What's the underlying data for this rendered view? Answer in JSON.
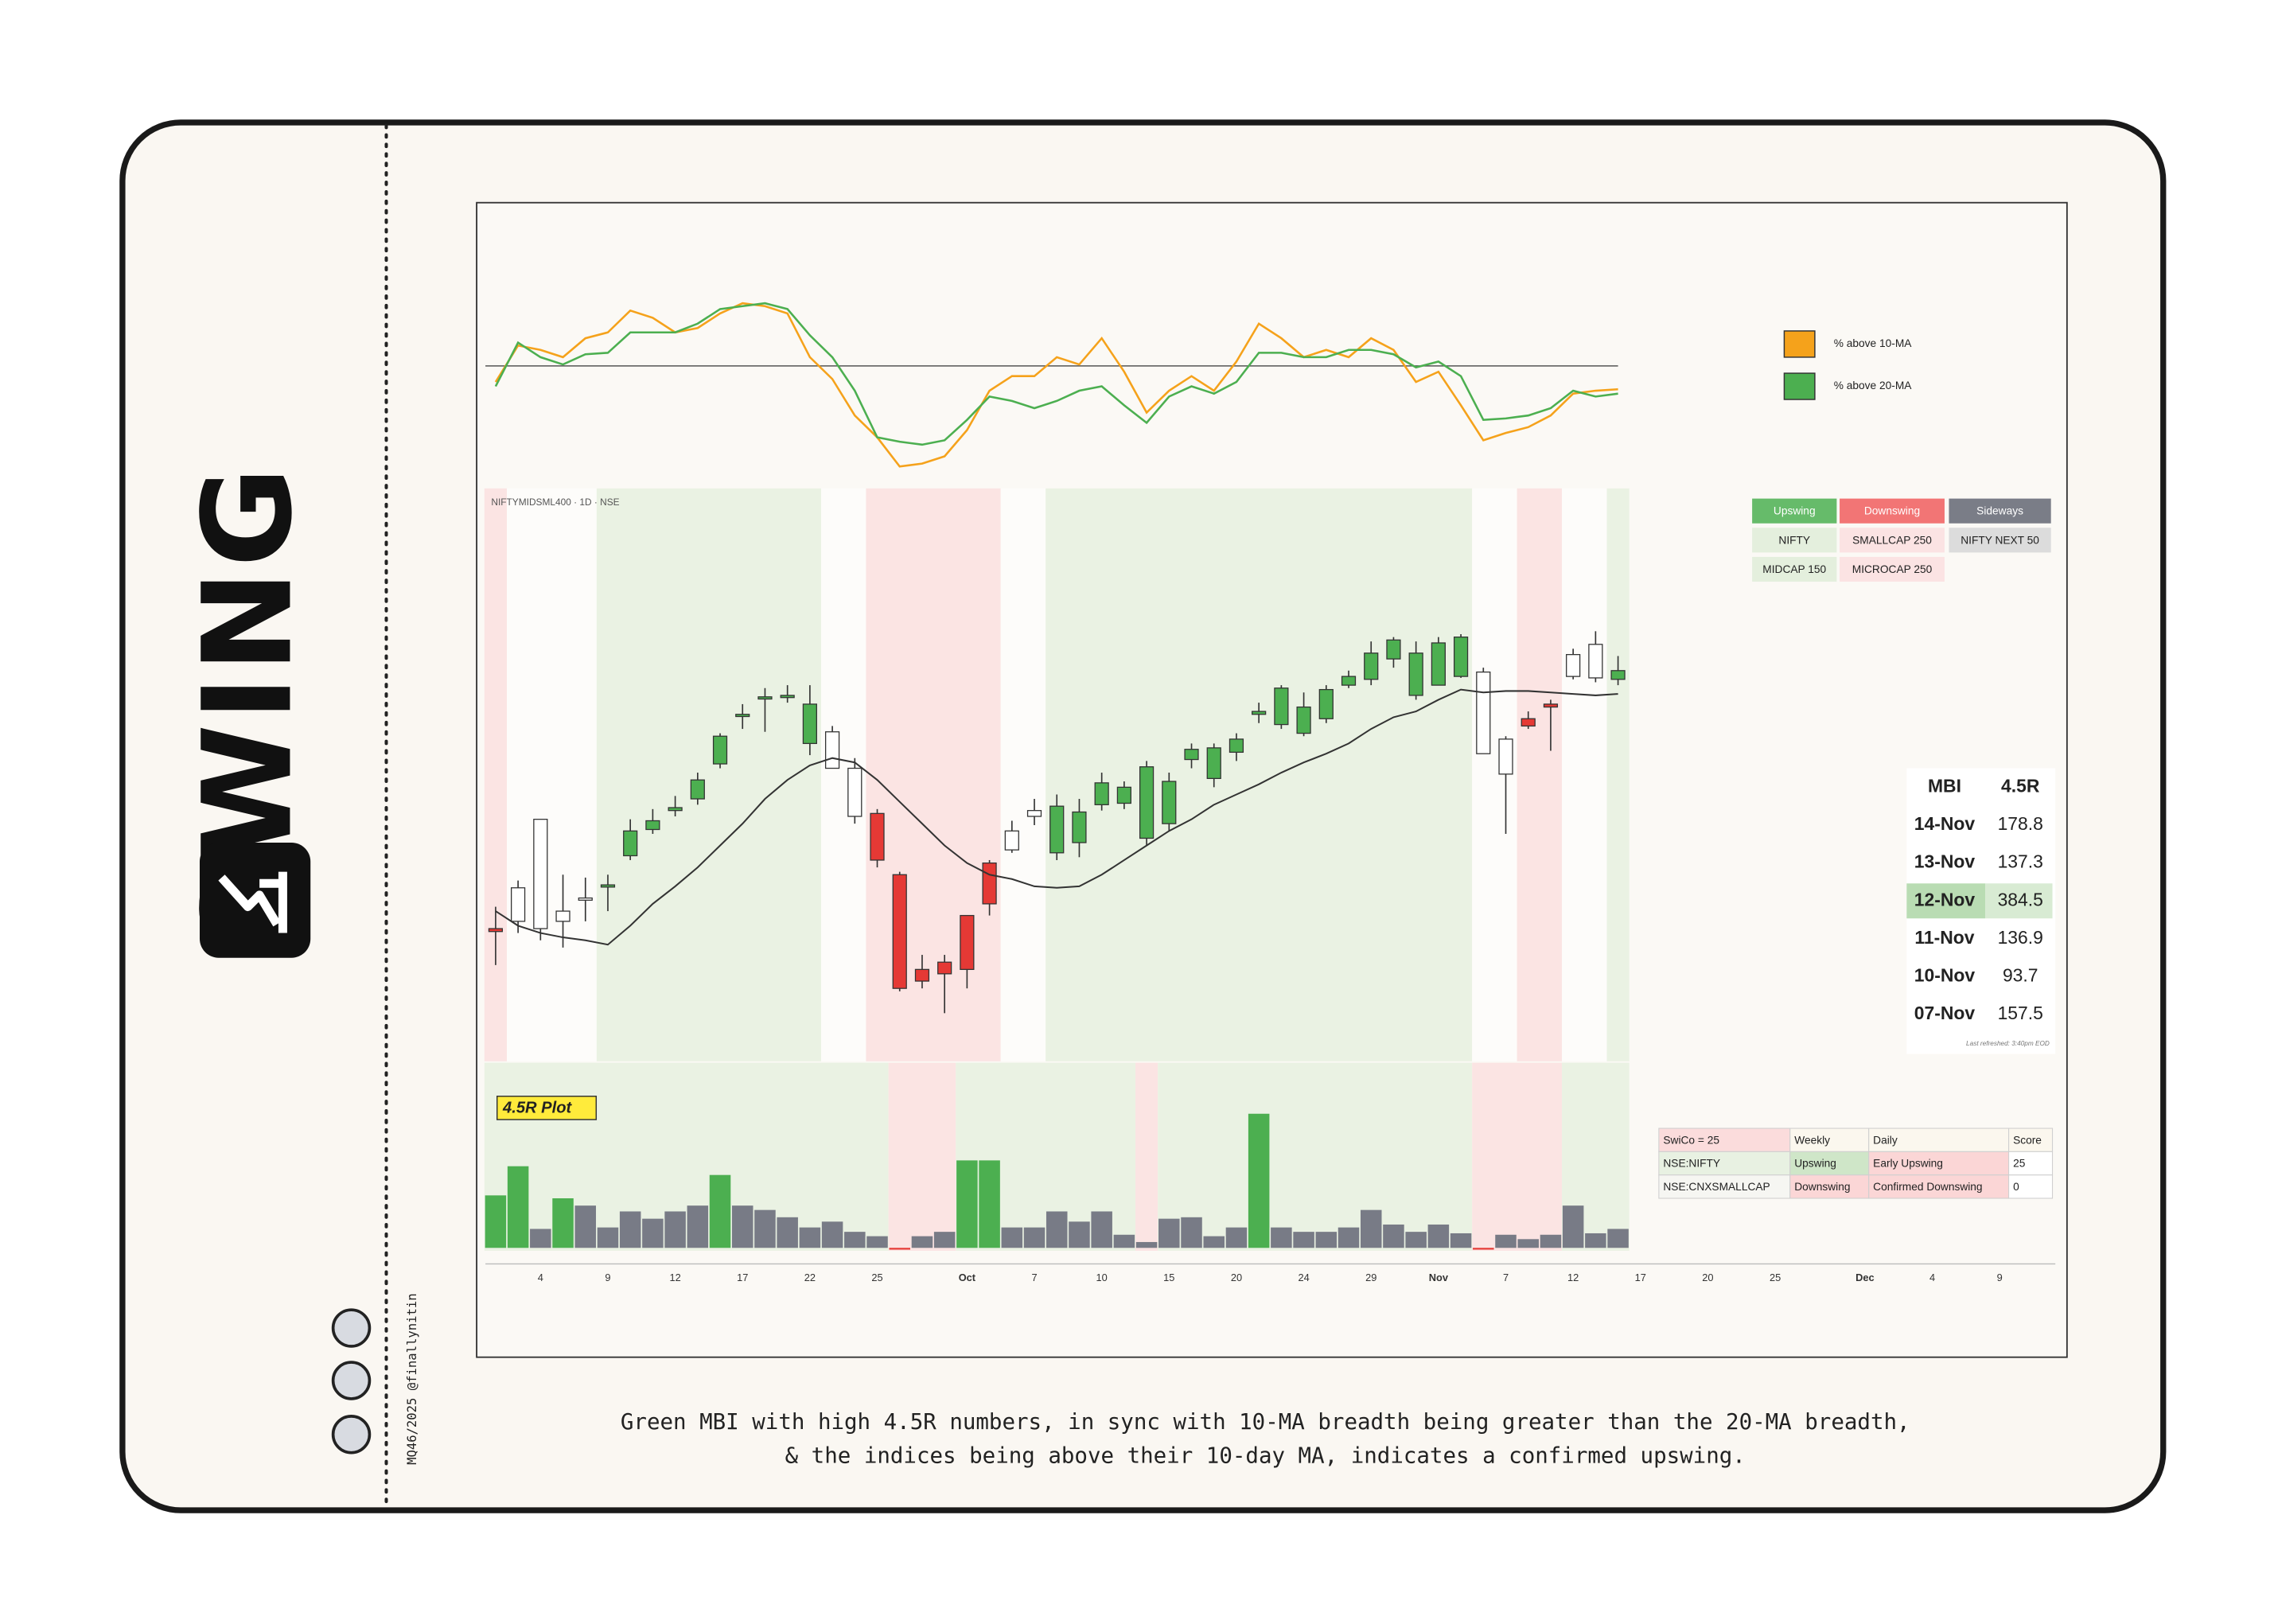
{
  "brand": "SWING",
  "credit": "MQ46/2025 @finallynitin",
  "caption": [
    "Green MBI with high 4.5R numbers, in sync with 10-MA breadth being greater than the 20-MA breadth,",
    "& the indices being above their 10-day MA, indicates a confirmed upswing."
  ],
  "regime_table": {
    "header": [
      "Upswing",
      "Downswing",
      "Sideways"
    ],
    "header_colors": [
      "#66bb6a",
      "#f27575",
      "#7a7d87"
    ],
    "cell_colors": [
      "#e4efdd",
      "#fbe3e3",
      "#dcdcdc"
    ],
    "rows": [
      [
        "NIFTY",
        "SMALLCAP 250",
        "NIFTY NEXT 50"
      ],
      [
        "MIDCAP 150",
        "MICROCAP 250",
        null
      ]
    ]
  },
  "mbi_table": {
    "header": [
      "MBI",
      "4.5R"
    ],
    "rows": [
      [
        "14-Nov",
        178.8
      ],
      [
        "13-Nov",
        137.3
      ],
      [
        "12-Nov",
        384.5
      ],
      [
        "11-Nov",
        136.9
      ],
      [
        "10-Nov",
        93.7
      ],
      [
        "07-Nov",
        157.5
      ]
    ],
    "highlight_row": 2,
    "highlight_colors": [
      "#b9dcb3",
      "#d8ebd3"
    ],
    "note": "Last refreshed: 3:40pm EOD"
  },
  "swico_table": {
    "rows": [
      [
        "SwiCo = 25",
        "Weekly",
        "Daily",
        "Score"
      ],
      [
        "NSE:NIFTY",
        "Upswing",
        "Early Upswing",
        "25"
      ],
      [
        "NSE:CNXSMALLCAP",
        "Downswing",
        "Confirmed Downswing",
        "0"
      ]
    ],
    "colors": [
      [
        "#fbdcdc",
        "#fbf7ee",
        "#fbf7ee",
        "#fbf7ee"
      ],
      [
        "#e8f1e2",
        "#cfe6c8",
        "#fbd6d6",
        "#ffffff"
      ],
      [
        "#f6f6f2",
        "#fbd6d6",
        "#fbd6d6",
        "#ffffff"
      ]
    ]
  },
  "chart_data": [
    {
      "type": "line",
      "x": [
        0,
        1,
        2,
        3,
        4,
        5,
        6,
        7,
        8,
        9,
        10,
        11,
        12,
        13,
        14,
        15,
        16,
        17,
        18,
        19,
        20,
        21,
        22,
        23,
        24,
        25,
        26,
        27,
        28,
        29,
        30,
        31,
        32,
        33,
        34,
        35,
        36,
        37,
        38,
        39,
        40,
        41,
        42,
        43,
        44,
        45,
        46,
        47,
        48,
        49,
        50
      ],
      "xlim": [
        -0.5,
        68.5
      ],
      "ylim": [
        0,
        190
      ],
      "hline": 79,
      "series": [
        {
          "name": "% above 10-MA",
          "color": "#f5a21b",
          "values": [
            68,
            93,
            90,
            85,
            98,
            102,
            117,
            112,
            102,
            105,
            115,
            122,
            120,
            115,
            85,
            70,
            45,
            30,
            10,
            12,
            17,
            35,
            62,
            72,
            72,
            85,
            80,
            98,
            75,
            47,
            62,
            72,
            62,
            82,
            108,
            98,
            85,
            90,
            85,
            98,
            90,
            68,
            75,
            52,
            28,
            33,
            37,
            45,
            60,
            62,
            63
          ]
        },
        {
          "name": "% above 20-MA",
          "color": "#4caf50",
          "values": [
            65,
            95,
            85,
            80,
            87,
            88,
            102,
            102,
            102,
            108,
            118,
            120,
            122,
            118,
            100,
            85,
            62,
            30,
            27,
            25,
            28,
            42,
            58,
            55,
            50,
            55,
            62,
            65,
            52,
            40,
            58,
            65,
            60,
            68,
            88,
            88,
            85,
            85,
            90,
            90,
            87,
            78,
            82,
            72,
            42,
            43,
            45,
            50,
            62,
            58,
            60
          ]
        }
      ]
    },
    {
      "type": "candlestick",
      "title": "NIFTYMIDSML400 · 1D · NSE",
      "x": [
        0,
        1,
        2,
        3,
        4,
        5,
        6,
        7,
        8,
        9,
        10,
        11,
        12,
        13,
        14,
        15,
        16,
        17,
        18,
        19,
        20,
        21,
        22,
        23,
        24,
        25,
        26,
        27,
        28,
        29,
        30,
        31,
        32,
        33,
        34,
        35,
        36,
        37,
        38,
        39,
        40,
        41,
        42,
        43,
        44,
        45,
        46,
        47,
        48,
        49,
        50
      ],
      "xlim": [
        -0.5,
        68.5
      ],
      "ylim": [
        0,
        393
      ],
      "open": [
        91,
        96,
        91,
        96,
        111,
        121,
        141,
        159,
        172,
        180,
        204,
        238,
        250,
        250,
        218,
        201,
        201,
        170,
        128,
        63,
        68,
        63,
        108,
        145,
        168,
        143,
        150,
        176,
        177,
        153,
        163,
        207,
        194,
        212,
        238,
        231,
        225,
        235,
        258,
        262,
        276,
        251,
        258,
        264,
        267,
        221,
        235,
        245,
        264,
        263,
        262
      ],
      "high": [
        106,
        124,
        166,
        128,
        126,
        128,
        166,
        173,
        182,
        198,
        225,
        245,
        256,
        258,
        258,
        230,
        208,
        173,
        130,
        73,
        73,
        100,
        138,
        165,
        180,
        183,
        180,
        198,
        192,
        206,
        198,
        218,
        218,
        225,
        246,
        258,
        253,
        258,
        268,
        288,
        291,
        288,
        291,
        293,
        270,
        223,
        240,
        248,
        283,
        295,
        278
      ],
      "low": [
        66,
        88,
        83,
        78,
        96,
        103,
        138,
        156,
        168,
        176,
        201,
        228,
        226,
        246,
        210,
        201,
        163,
        133,
        48,
        50,
        33,
        50,
        100,
        143,
        162,
        138,
        140,
        172,
        173,
        148,
        158,
        201,
        188,
        206,
        232,
        228,
        223,
        232,
        256,
        258,
        270,
        248,
        258,
        263,
        211,
        156,
        228,
        213,
        262,
        260,
        258
      ],
      "close": [
        89,
        119,
        166,
        103,
        112,
        121,
        158,
        165,
        174,
        193,
        223,
        238,
        250,
        251,
        245,
        226,
        168,
        138,
        50,
        55,
        60,
        100,
        136,
        158,
        172,
        175,
        171,
        191,
        188,
        202,
        192,
        214,
        215,
        221,
        240,
        256,
        243,
        255,
        264,
        280,
        289,
        280,
        287,
        291,
        211,
        197,
        230,
        243,
        279,
        286,
        268
      ],
      "line_values": [
        103,
        93,
        88,
        85,
        83,
        80,
        93,
        108,
        120,
        133,
        148,
        163,
        180,
        193,
        203,
        208,
        205,
        193,
        178,
        163,
        148,
        136,
        128,
        125,
        120,
        119,
        120,
        128,
        138,
        148,
        158,
        166,
        176,
        183,
        190,
        198,
        205,
        211,
        218,
        228,
        236,
        240,
        248,
        255,
        253,
        254,
        254,
        253,
        252,
        251,
        252
      ],
      "line_color": "#333333",
      "bands": [
        {
          "from": 0,
          "to": 0,
          "fill": "#fbe4e3",
          "candle": "#e53935"
        },
        {
          "from": 1,
          "to": 4,
          "fill": "#fdfcfa",
          "candle": "#ffffff"
        },
        {
          "from": 5,
          "to": 14,
          "fill": "#eaf2e3",
          "candle": "#4caf50"
        },
        {
          "from": 15,
          "to": 16,
          "fill": "#fdfcfa",
          "candle": "#ffffff"
        },
        {
          "from": 17,
          "to": 22,
          "fill": "#fbe4e3",
          "candle": "#e53935"
        },
        {
          "from": 23,
          "to": 24,
          "fill": "#fdfcfa",
          "candle": "#ffffff"
        },
        {
          "from": 25,
          "to": 43,
          "fill": "#eaf2e3",
          "candle": "#4caf50"
        },
        {
          "from": 44,
          "to": 45,
          "fill": "#fdfcfa",
          "candle": "#ffffff"
        },
        {
          "from": 46,
          "to": 47,
          "fill": "#fbe4e3",
          "candle": "#e53935"
        },
        {
          "from": 48,
          "to": 49,
          "fill": "#fdfcfa",
          "candle": "#ffffff"
        },
        {
          "from": 50,
          "to": 50,
          "fill": "#eaf2e3",
          "candle": "#4caf50"
        }
      ]
    },
    {
      "type": "bar",
      "title": "4.5R Plot",
      "x": [
        0,
        1,
        2,
        3,
        4,
        5,
        6,
        7,
        8,
        9,
        10,
        11,
        12,
        13,
        14,
        15,
        16,
        17,
        18,
        19,
        20,
        21,
        22,
        23,
        24,
        25,
        26,
        27,
        28,
        29,
        30,
        31,
        32,
        33,
        34,
        35,
        36,
        37,
        38,
        39,
        40,
        41,
        42,
        43,
        44,
        45,
        46,
        47,
        48,
        49,
        50
      ],
      "xlim": [
        -0.5,
        68.5
      ],
      "ylim": [
        -5,
        125
      ],
      "values": [
        36,
        56,
        13,
        34,
        29,
        14,
        25,
        20,
        25,
        29,
        50,
        29,
        26,
        21,
        14,
        18,
        11,
        8,
        -1,
        8,
        11,
        60,
        60,
        14,
        14,
        25,
        18,
        25,
        9,
        4,
        20,
        21,
        8,
        14,
        92,
        14,
        11,
        11,
        14,
        26,
        16,
        11,
        16,
        10,
        -1,
        9,
        6,
        9,
        29,
        10,
        13
      ],
      "colors": [
        "#4caf50",
        "#4caf50",
        "#787b86",
        "#4caf50",
        "#787b86",
        "#787b86",
        "#787b86",
        "#787b86",
        "#787b86",
        "#787b86",
        "#4caf50",
        "#787b86",
        "#787b86",
        "#787b86",
        "#787b86",
        "#787b86",
        "#787b86",
        "#787b86",
        "#e53935",
        "#787b86",
        "#787b86",
        "#4caf50",
        "#4caf50",
        "#787b86",
        "#787b86",
        "#787b86",
        "#787b86",
        "#787b86",
        "#787b86",
        "#787b86",
        "#787b86",
        "#787b86",
        "#787b86",
        "#787b86",
        "#4caf50",
        "#787b86",
        "#787b86",
        "#787b86",
        "#787b86",
        "#787b86",
        "#787b86",
        "#787b86",
        "#787b86",
        "#787b86",
        "#e53935",
        "#787b86",
        "#787b86",
        "#787b86",
        "#787b86",
        "#787b86",
        "#787b86"
      ],
      "bands": [
        {
          "from": 0,
          "to": 17,
          "fill": "#eaf2e3"
        },
        {
          "from": 18,
          "to": 20,
          "fill": "#fbe4e3"
        },
        {
          "from": 21,
          "to": 28,
          "fill": "#eaf2e3"
        },
        {
          "from": 29,
          "to": 29,
          "fill": "#fbe4e3"
        },
        {
          "from": 30,
          "to": 43,
          "fill": "#eaf2e3"
        },
        {
          "from": 44,
          "to": 47,
          "fill": "#fbe4e3"
        },
        {
          "from": 48,
          "to": 50,
          "fill": "#eaf2e3"
        }
      ],
      "xticks": [
        {
          "value": 2,
          "label": "4"
        },
        {
          "value": 5,
          "label": "9"
        },
        {
          "value": 8,
          "label": "12"
        },
        {
          "value": 11,
          "label": "17"
        },
        {
          "value": 14,
          "label": "22"
        },
        {
          "value": 17,
          "label": "25"
        },
        {
          "value": 21,
          "label": "Oct"
        },
        {
          "value": 24,
          "label": "7"
        },
        {
          "value": 27,
          "label": "10"
        },
        {
          "value": 30,
          "label": "15"
        },
        {
          "value": 33,
          "label": "20"
        },
        {
          "value": 36,
          "label": "24"
        },
        {
          "value": 39,
          "label": "29"
        },
        {
          "value": 42,
          "label": "Nov"
        },
        {
          "value": 45,
          "label": "7"
        },
        {
          "value": 48,
          "label": "12"
        },
        {
          "value": 51,
          "label": "17"
        },
        {
          "value": 54,
          "label": "20"
        },
        {
          "value": 57,
          "label": "25"
        },
        {
          "value": 61,
          "label": "Dec"
        },
        {
          "value": 64,
          "label": "4"
        },
        {
          "value": 67,
          "label": "9"
        }
      ]
    }
  ]
}
